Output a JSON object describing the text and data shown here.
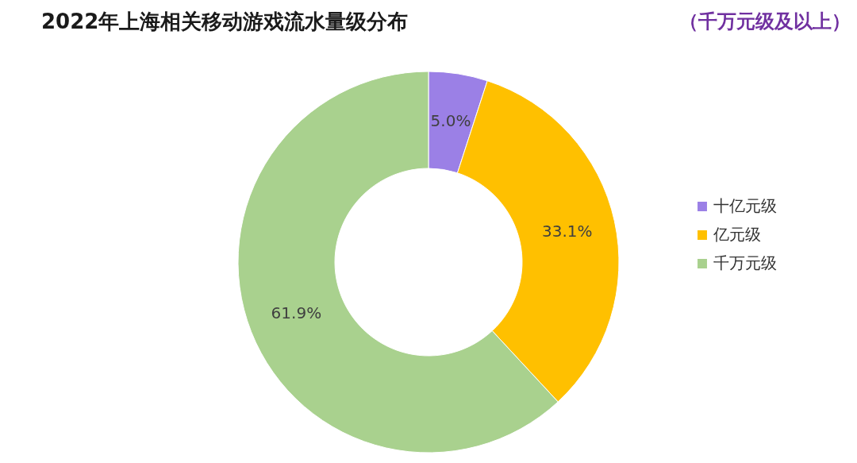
{
  "chart_data": {
    "type": "donut",
    "title": "2022年上海相关移动游戏流水量级分布",
    "subtitle": "（千万元级及以上）",
    "categories": [
      "十亿元级",
      "亿元级",
      "千万元级"
    ],
    "values": [
      5.0,
      33.1,
      61.9
    ],
    "colors": [
      "#9b80e6",
      "#ffc000",
      "#a9d18e"
    ],
    "value_labels": [
      "5.0%",
      "33.1%",
      "61.9%"
    ],
    "legend": "right"
  }
}
